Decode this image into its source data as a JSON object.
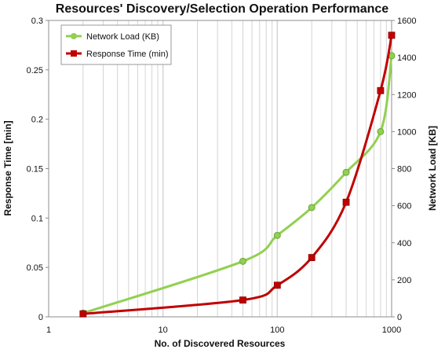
{
  "chart_data": {
    "type": "line",
    "title": "Resources' Discovery/Selection Operation Performance",
    "xlabel": "No. of Discovered Resources",
    "ylabel": "Response Time [min]",
    "y2label": "Network Load [KB]",
    "xscale": "log",
    "xlim": [
      1,
      1000
    ],
    "ylim": [
      0,
      0.3
    ],
    "y2lim": [
      0,
      1600
    ],
    "x_ticks": [
      "1",
      "10",
      "100",
      "1000"
    ],
    "y_ticks": [
      "0",
      "0.05",
      "0.1",
      "0.15",
      "0.2",
      "0.25",
      "0.3"
    ],
    "y2_ticks": [
      "0",
      "200",
      "400",
      "600",
      "800",
      "1000",
      "1200",
      "1400",
      "1600"
    ],
    "grid": {
      "x_major_minor": true,
      "y": false
    },
    "legend_position": "top-left",
    "series": [
      {
        "name": "Network Load (KB)",
        "axis": "right",
        "color": "#92d050",
        "marker": "circle",
        "x": [
          2,
          50,
          100,
          200,
          400,
          800,
          1000
        ],
        "values": [
          20,
          300,
          440,
          590,
          780,
          1000,
          1410
        ]
      },
      {
        "name": "Response Time (min)",
        "axis": "left",
        "color": "#c00000",
        "marker": "square",
        "x": [
          2,
          50,
          100,
          200,
          400,
          800,
          1000
        ],
        "values": [
          0.003,
          0.017,
          0.032,
          0.06,
          0.116,
          0.229,
          0.285
        ]
      }
    ]
  }
}
